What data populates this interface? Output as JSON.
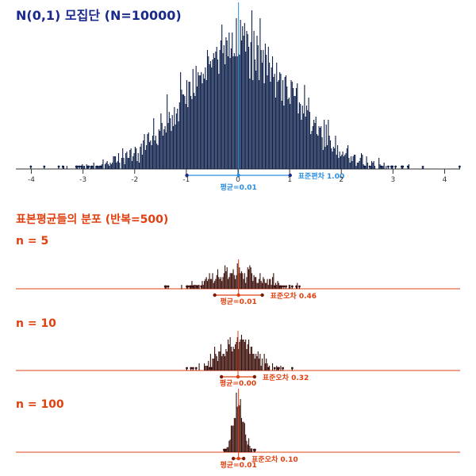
{
  "chart_data": [
    {
      "type": "histogram",
      "title": "N(0,1) 모집단 (N=10000)",
      "distribution": "normal",
      "mean": 0.01,
      "sd": 1.0,
      "n_points": 10000,
      "x_ticks": [
        -4,
        -3,
        -2,
        -1,
        0,
        1,
        2,
        3,
        4
      ],
      "xlim": [
        -4.3,
        4.3
      ],
      "mean_label": "평균=0.01",
      "spread_label": "표준편차 1.00",
      "color": "#0d1f4a",
      "accent": "#2a8ee0"
    },
    {
      "type": "histogram",
      "title": "n = 5",
      "mean": 0.01,
      "se": 0.46,
      "reps": 500,
      "mean_label": "평균=0.01",
      "spread_label": "표준오차 0.46",
      "color": "#3a0d08",
      "accent": "#e04010"
    },
    {
      "type": "histogram",
      "title": "n = 10",
      "mean": 0.0,
      "se": 0.32,
      "reps": 500,
      "mean_label": "평균=0.00",
      "spread_label": "표준오차 0.32",
      "color": "#3a0d08",
      "accent": "#e04010"
    },
    {
      "type": "histogram",
      "title": "n = 100",
      "mean": 0.01,
      "se": 0.1,
      "reps": 500,
      "mean_label": "평균=0.01",
      "spread_label": "표준오차 0.10",
      "color": "#3a0d08",
      "accent": "#e04010"
    }
  ],
  "sampling_title": "표본평균들의 분포 (반복=500)"
}
